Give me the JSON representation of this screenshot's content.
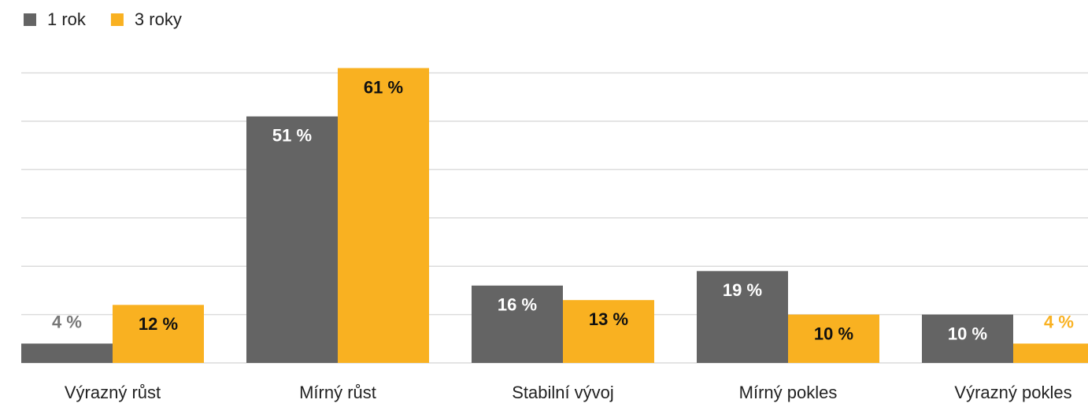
{
  "chart_data": {
    "type": "bar",
    "categories": [
      "Výrazný růst",
      "Mírný růst",
      "Stabilní vývoj",
      "Mírný pokles",
      "Výrazný pokles"
    ],
    "series": [
      {
        "name": "1 rok",
        "color": "#646464",
        "values": [
          4,
          51,
          16,
          19,
          10
        ],
        "value_labels": [
          "4 %",
          "51 %",
          "16 %",
          "19 %",
          "10 %"
        ]
      },
      {
        "name": "3 roky",
        "color": "#f9b121",
        "values": [
          12,
          61,
          13,
          10,
          4
        ],
        "value_labels": [
          "12 %",
          "61 %",
          "13 %",
          "10 %",
          "4 %"
        ]
      }
    ],
    "ylim": [
      0,
      65
    ],
    "yticks": [
      0,
      10,
      20,
      30,
      40,
      50,
      60
    ],
    "grid": true,
    "legend": "top-left"
  }
}
